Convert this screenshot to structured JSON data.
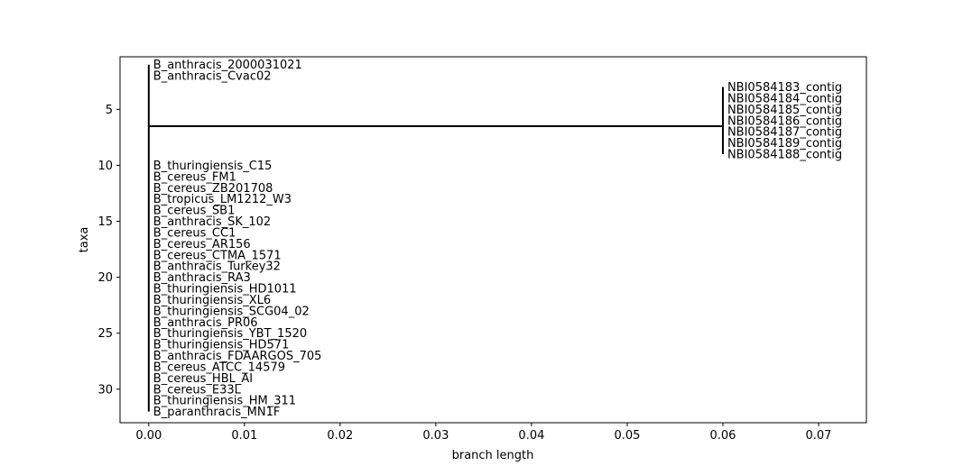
{
  "chart_data": {
    "type": "dendrogram",
    "xlabel": "branch length",
    "ylabel": "taxa",
    "xlim": [
      -0.003,
      0.075
    ],
    "ylim": [
      33,
      0.3
    ],
    "x_ticks": [
      0.0,
      0.01,
      0.02,
      0.03,
      0.04,
      0.05,
      0.06,
      0.07
    ],
    "x_tick_labels": [
      "0.00",
      "0.01",
      "0.02",
      "0.03",
      "0.04",
      "0.05",
      "0.06",
      "0.07"
    ],
    "y_ticks": [
      5,
      10,
      15,
      20,
      25,
      30
    ],
    "y_tick_labels": [
      "5",
      "10",
      "15",
      "20",
      "25",
      "30"
    ],
    "grid": false,
    "internal_branch": {
      "x_start": 0.0,
      "x_end": 0.06,
      "y": 6.5
    },
    "clades": [
      {
        "x": 0.0,
        "y_min": 1,
        "y_max": 32
      },
      {
        "x": 0.06,
        "y_min": 3,
        "y_max": 9
      }
    ],
    "leaves": [
      {
        "name": "B_anthracis_2000031021",
        "x": 0.0,
        "y": 1
      },
      {
        "name": "B_anthracis_Cvac02",
        "x": 0.0,
        "y": 2
      },
      {
        "name": "NBI0584183_contig",
        "x": 0.06,
        "y": 3
      },
      {
        "name": "NBI0584184_contig",
        "x": 0.06,
        "y": 4
      },
      {
        "name": "NBI0584185_contig",
        "x": 0.06,
        "y": 5
      },
      {
        "name": "NBI0584186_contig",
        "x": 0.06,
        "y": 6
      },
      {
        "name": "NBI0584187_contig",
        "x": 0.06,
        "y": 7
      },
      {
        "name": "NBI0584189_contig",
        "x": 0.06,
        "y": 8
      },
      {
        "name": "NBI0584188_contig",
        "x": 0.06,
        "y": 9
      },
      {
        "name": "B_thuringiensis_C15",
        "x": 0.0,
        "y": 10
      },
      {
        "name": "B_cereus_FM1",
        "x": 0.0,
        "y": 11
      },
      {
        "name": "B_cereus_ZB201708",
        "x": 0.0,
        "y": 12
      },
      {
        "name": "B_tropicus_LM1212_W3",
        "x": 0.0,
        "y": 13
      },
      {
        "name": "B_cereus_SB1",
        "x": 0.0,
        "y": 14
      },
      {
        "name": "B_anthracis_SK_102",
        "x": 0.0,
        "y": 15
      },
      {
        "name": "B_cereus_CC1",
        "x": 0.0,
        "y": 16
      },
      {
        "name": "B_cereus_AR156",
        "x": 0.0,
        "y": 17
      },
      {
        "name": "B_cereus_CTMA_1571",
        "x": 0.0,
        "y": 18
      },
      {
        "name": "B_anthracis_Turkey32",
        "x": 0.0,
        "y": 19
      },
      {
        "name": "B_anthracis_RA3",
        "x": 0.0,
        "y": 20
      },
      {
        "name": "B_thuringiensis_HD1011",
        "x": 0.0,
        "y": 21
      },
      {
        "name": "B_thuringiensis_XL6",
        "x": 0.0,
        "y": 22
      },
      {
        "name": "B_thuringiensis_SCG04_02",
        "x": 0.0,
        "y": 23
      },
      {
        "name": "B_anthracis_PR06",
        "x": 0.0,
        "y": 24
      },
      {
        "name": "B_thuringiensis_YBT_1520",
        "x": 0.0,
        "y": 25
      },
      {
        "name": "B_thuringiensis_HD571",
        "x": 0.0,
        "y": 26
      },
      {
        "name": "B_anthracis_FDAARGOS_705",
        "x": 0.0,
        "y": 27
      },
      {
        "name": "B_cereus_ATCC_14579",
        "x": 0.0,
        "y": 28
      },
      {
        "name": "B_cereus_HBL_AI",
        "x": 0.0,
        "y": 29
      },
      {
        "name": "B_cereus_E33L",
        "x": 0.0,
        "y": 30
      },
      {
        "name": "B_thuringiensis_HM_311",
        "x": 0.0,
        "y": 31
      },
      {
        "name": "B_paranthracis_MN1F",
        "x": 0.0,
        "y": 32
      }
    ]
  }
}
